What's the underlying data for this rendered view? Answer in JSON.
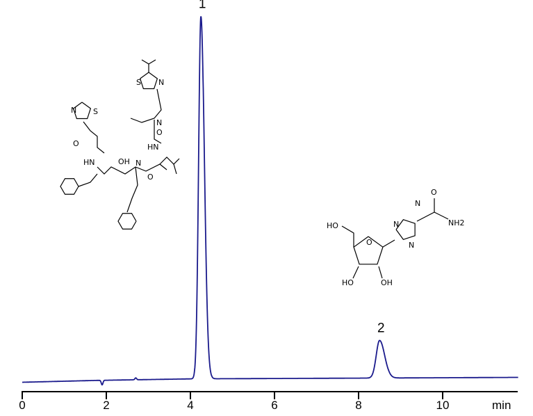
{
  "chart_data": {
    "type": "line",
    "title": "",
    "xlabel": "min",
    "ylabel": "",
    "xlim": [
      0,
      11.8
    ],
    "ylim": [
      0,
      100
    ],
    "grid": false,
    "x_ticks": [
      0,
      2,
      4,
      6,
      8,
      10
    ],
    "x_tick_labels": [
      "0",
      "2",
      "4",
      "6",
      "8",
      "10"
    ],
    "series": [
      {
        "color": "#1a1a8c",
        "baseline": [
          [
            0,
            2.5
          ],
          [
            1.8,
            3.0
          ],
          [
            4.0,
            3.4
          ],
          [
            8.0,
            3.6
          ],
          [
            11.8,
            3.8
          ]
        ],
        "disturbances": [
          {
            "time": 1.9,
            "height": -1.2
          },
          {
            "time": 2.7,
            "height": 0.5
          }
        ],
        "peaks": [
          {
            "label": "1",
            "time": 4.25,
            "height": 96.5,
            "width": 0.055
          },
          {
            "label": "2",
            "time": 8.5,
            "height": 10.0,
            "width": 0.08
          }
        ]
      }
    ],
    "peak_labels": [
      "1",
      "2"
    ],
    "structures": [
      {
        "name": "ritonavir",
        "atom_labels": [
          "S",
          "N",
          "N",
          "S",
          "O",
          "O",
          "N",
          "HN",
          "HN",
          "OH",
          "H",
          "N",
          "O"
        ]
      },
      {
        "name": "ribavirin",
        "atom_labels": [
          "HO",
          "O",
          "N",
          "N",
          "N",
          "O",
          "NH2",
          "HO",
          "OH"
        ]
      }
    ]
  }
}
